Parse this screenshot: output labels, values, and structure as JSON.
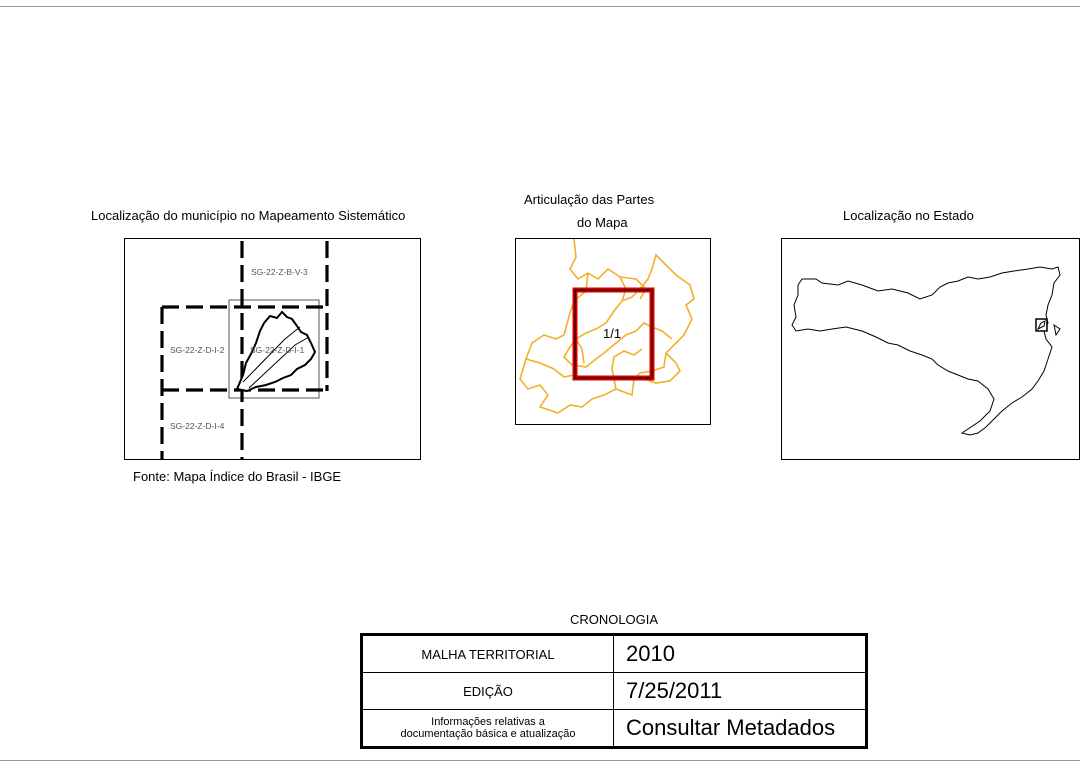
{
  "panels": {
    "systematic": {
      "title": "Localização do município no Mapeamento Sistemático",
      "sheets": [
        "SG-22-Z-B-V-3",
        "SG-22-Z-D-I-2",
        "SG-22-Z-D-I-1",
        "SG-22-Z-D-I-4"
      ],
      "source": "Fonte: Mapa Índice do Brasil - IBGE"
    },
    "articulation": {
      "title_line1": "Articulação das Partes",
      "title_line2": "do Mapa",
      "part_label": "1/1",
      "colors": {
        "boundaries": "#f2b02a",
        "frame": "#d40000"
      }
    },
    "state": {
      "title": "Localização no Estado"
    }
  },
  "cronologia": {
    "title": "CRONOLOGIA",
    "rows": [
      {
        "label": "MALHA TERRITORIAL",
        "value": "2010"
      },
      {
        "label": "EDIÇÃO",
        "value": "7/25/2011"
      },
      {
        "label_line1": "Informações relativas a",
        "label_line2": "documentação básica e atualização",
        "value": "Consultar Metadados"
      }
    ]
  }
}
